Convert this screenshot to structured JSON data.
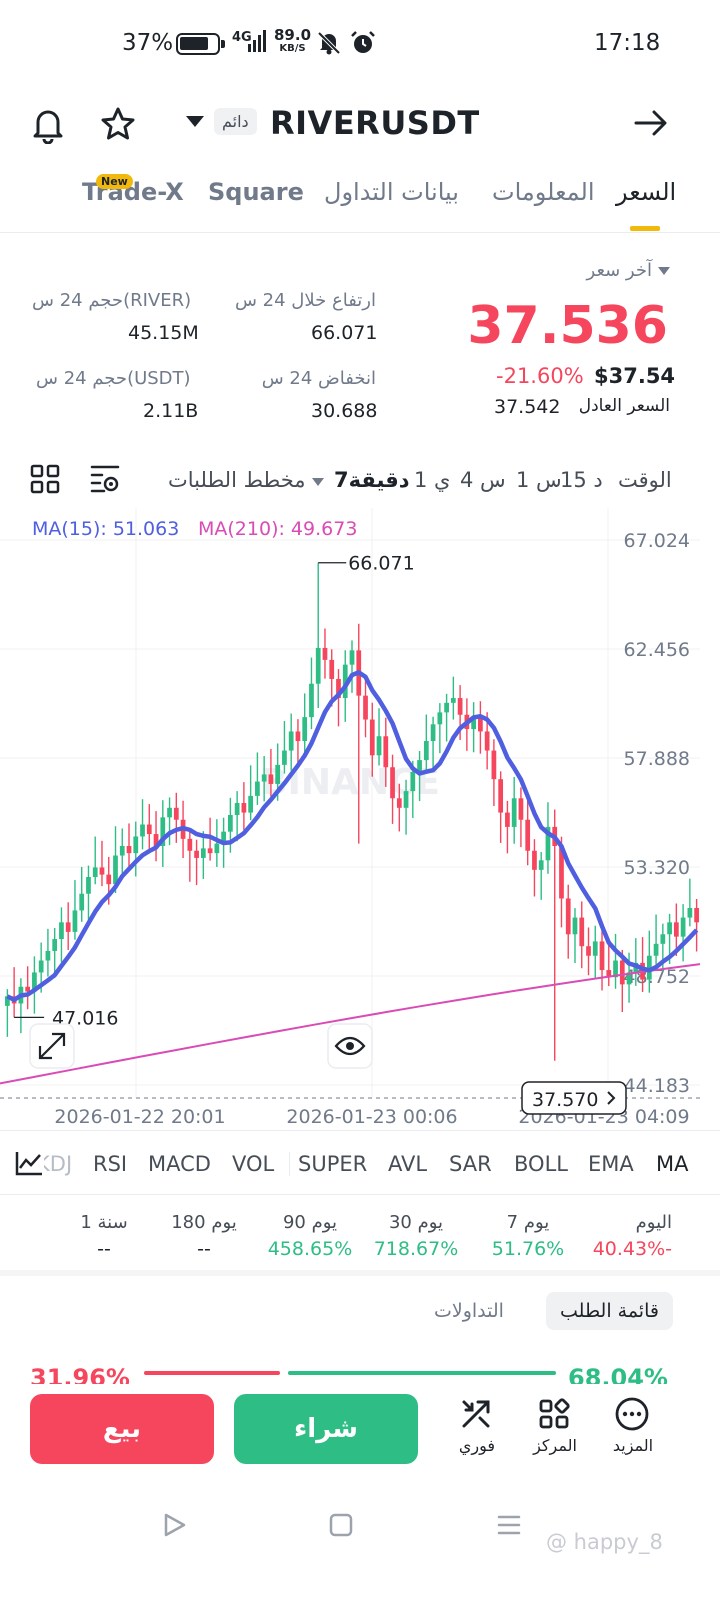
{
  "status_bar": {
    "battery": "37%",
    "network": "4G",
    "speed_value": "89.0",
    "speed_unit": "KB/S",
    "time": "17:18"
  },
  "header": {
    "perpetual_tag": "دائم",
    "symbol": "RIVERUSDT"
  },
  "tabs": [
    {
      "label": "السعر",
      "active": true
    },
    {
      "label": "المعلومات",
      "active": false
    },
    {
      "label": "بيانات التداول",
      "active": false
    },
    {
      "label": "Square",
      "active": false
    },
    {
      "label": "Trade-X",
      "active": false,
      "badge": "New"
    }
  ],
  "price": {
    "last_label": "آخر سعر",
    "last": "37.536",
    "change_pct": "-21.60%",
    "usd_price": "$37.54",
    "fair_label": "السعر العادل",
    "fair_value": "37.542",
    "high_label": "ارتفاع خلال 24 س",
    "high_value": "66.071",
    "low_label": "انخفاض 24 س",
    "low_value": "30.688",
    "vol_base_label": "حجم 24 س(RIVER)",
    "vol_base_value": "45.15M",
    "vol_quote_label": "حجم 24 س(USDT)",
    "vol_quote_value": "2.11B"
  },
  "intervals": {
    "time_label": "الوقت",
    "items": [
      "15 د",
      "1 س",
      "4 س",
      "1 ي"
    ],
    "selected": "7دقيقة",
    "depth_label": "مخطط الطلبات"
  },
  "ma_legend": {
    "ma15": "MA(15): 51.063",
    "ma210": "MA(210): 49.673",
    "ma15_color": "#4f5fe0",
    "ma210_color": "#d94bb5"
  },
  "chart_data": {
    "type": "candlestick",
    "y_ticks": [
      "67.024",
      "62.456",
      "57.888",
      "53.320",
      "48.752",
      "44.183"
    ],
    "ylim": [
      44.183,
      67.024
    ],
    "x_ticks": [
      "2026-01-22 20:01",
      "2026-01-23 00:06",
      "2026-01-23 04:09"
    ],
    "high_marker": "66.071",
    "low_marker": "47.016",
    "current_price_tag": "37.570",
    "watermark": "BINANCE",
    "up_color": "#2ebd85",
    "down_color": "#f6465d",
    "close": [
      47.9,
      47.6,
      48.3,
      48.1,
      48.9,
      49.4,
      49.8,
      50.3,
      51.0,
      50.6,
      51.5,
      52.2,
      52.9,
      53.3,
      53.0,
      52.6,
      53.8,
      54.2,
      53.9,
      54.6,
      55.1,
      54.7,
      54.2,
      55.4,
      55.8,
      55.3,
      54.5,
      54.0,
      53.7,
      54.1,
      53.9,
      54.3,
      54.8,
      55.5,
      56.0,
      55.6,
      56.3,
      56.9,
      57.2,
      56.8,
      57.6,
      58.2,
      59.0,
      58.6,
      59.6,
      61.0,
      62.5,
      62.0,
      61.2,
      60.4,
      61.8,
      62.4,
      60.5,
      59.5,
      58.0,
      58.8,
      57.5,
      56.2,
      55.8,
      56.5,
      57.3,
      57.8,
      58.6,
      59.3,
      59.8,
      60.2,
      60.4,
      59.7,
      59.1,
      59.6,
      59.0,
      58.2,
      57.0,
      55.6,
      55.0,
      56.2,
      55.3,
      54.0,
      53.2,
      53.6,
      55.0,
      54.2,
      52.0,
      50.5,
      51.2,
      50.0,
      49.6,
      50.2,
      49.0,
      48.7,
      49.4,
      48.4,
      48.9,
      49.3,
      48.6,
      49.6,
      50.1,
      50.5,
      51.0,
      50.4,
      51.2,
      51.6,
      51.0
    ],
    "ma15_note": "MA(15)",
    "ma210_note": "MA(210)"
  },
  "indicators": {
    "items": [
      "MA",
      "EMA",
      "BOLL",
      "SAR",
      "AVL",
      "SUPER",
      "VOL",
      "MACD",
      "RSI",
      "KDJ"
    ],
    "active": "MA"
  },
  "performance": [
    {
      "label": "اليوم",
      "value": "40.43%-",
      "color": "#f6465d"
    },
    {
      "label": "7 يوم",
      "value": "51.76%",
      "color": "#2ebd85"
    },
    {
      "label": "30 يوم",
      "value": "718.67%",
      "color": "#2ebd85"
    },
    {
      "label": "90 يوم",
      "value": "458.65%",
      "color": "#2ebd85"
    },
    {
      "label": "180 يوم",
      "value": "--",
      "color": "#1e2329"
    },
    {
      "label": "1 سنة",
      "value": "--",
      "color": "#1e2329"
    }
  ],
  "order_book": {
    "tab_active": "قائمة الطلب",
    "tab_other": "التداولات",
    "bid_pct": "68.04%",
    "ask_pct": "31.96%"
  },
  "bottom": {
    "more": "المزيد",
    "center": "المركز",
    "instant": "فوري",
    "buy": "شراء",
    "sell": "بيع"
  },
  "watermark": "@ happy_8"
}
